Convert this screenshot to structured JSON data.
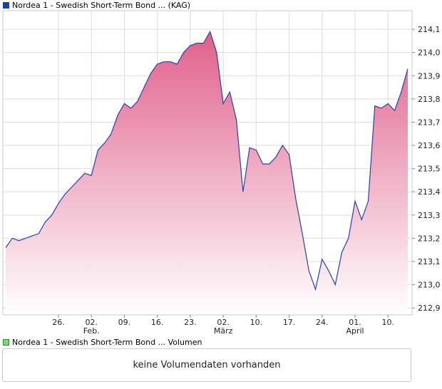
{
  "price_legend": {
    "label": "Nordea 1 - Swedish Short-Term Bond ... (KAG)",
    "color": "#1f3f9f"
  },
  "volume_legend": {
    "label": "Nordea 1 - Swedish Short-Term Bond ... Volumen",
    "color": "#7bd67b"
  },
  "volume_panel": {
    "message": "keine Volumendaten vorhanden"
  },
  "chart_data": {
    "type": "area",
    "title": "Nordea 1 - Swedish Short-Term Bond ... (KAG)",
    "xlabel": "",
    "ylabel": "",
    "ylim": [
      212.87,
      214.18
    ],
    "y_ticks": [
      "214,1",
      "214,0",
      "213,9",
      "213,8",
      "213,7",
      "213,6",
      "213,5",
      "213,4",
      "213,3",
      "213,2",
      "213,1",
      "213,0",
      "212,9"
    ],
    "y_tick_values": [
      214.1,
      214.0,
      213.9,
      213.8,
      213.7,
      213.6,
      213.5,
      213.4,
      213.3,
      213.2,
      213.1,
      213.0,
      212.9
    ],
    "x_ticks": [
      {
        "day": 8,
        "label": "26.",
        "sub": ""
      },
      {
        "day": 13,
        "label": "02.",
        "sub": "Feb."
      },
      {
        "day": 18,
        "label": "09.",
        "sub": ""
      },
      {
        "day": 23,
        "label": "16.",
        "sub": ""
      },
      {
        "day": 28,
        "label": "23.",
        "sub": ""
      },
      {
        "day": 33,
        "label": "02.",
        "sub": "März"
      },
      {
        "day": 38,
        "label": "10.",
        "sub": ""
      },
      {
        "day": 43,
        "label": "17.",
        "sub": ""
      },
      {
        "day": 48,
        "label": "24.",
        "sub": ""
      },
      {
        "day": 53,
        "label": "01.",
        "sub": "April"
      },
      {
        "day": 58,
        "label": "10.",
        "sub": ""
      }
    ],
    "x_range": [
      0,
      61
    ],
    "series": [
      {
        "name": "Nordea 1 - Swedish Short-Term Bond ... (KAG)",
        "day": [
          0,
          1,
          2,
          3,
          4,
          5,
          6,
          7,
          8,
          9,
          10,
          11,
          12,
          13,
          14,
          15,
          16,
          17,
          18,
          19,
          20,
          21,
          22,
          23,
          24,
          25,
          26,
          27,
          28,
          29,
          30,
          31,
          32,
          33,
          34,
          35,
          36,
          37,
          38,
          39,
          40,
          41,
          42,
          43,
          44,
          45,
          46,
          47,
          48,
          49,
          50,
          51,
          52,
          53,
          54,
          55,
          56,
          57,
          58,
          59,
          60,
          61
        ],
        "values": [
          213.16,
          213.2,
          213.19,
          213.2,
          213.21,
          213.22,
          213.27,
          213.3,
          213.35,
          213.39,
          213.42,
          213.45,
          213.48,
          213.47,
          213.58,
          213.61,
          213.65,
          213.73,
          213.78,
          213.76,
          213.79,
          213.85,
          213.91,
          213.95,
          213.96,
          213.96,
          213.95,
          214.0,
          214.03,
          214.04,
          214.04,
          214.09,
          214.0,
          213.78,
          213.83,
          213.71,
          213.4,
          213.59,
          213.58,
          213.52,
          213.52,
          213.55,
          213.6,
          213.56,
          213.37,
          213.22,
          213.06,
          212.98,
          213.11,
          213.06,
          213.0,
          213.14,
          213.2,
          213.36,
          213.28,
          213.36,
          213.77,
          213.76,
          213.78,
          213.75,
          213.83,
          213.93
        ]
      }
    ],
    "line_color": "#2b3fb0",
    "fill_top_color": "#e0608a",
    "fill_bottom_color": "#ffffff",
    "grid": true,
    "legend": "top-left"
  }
}
